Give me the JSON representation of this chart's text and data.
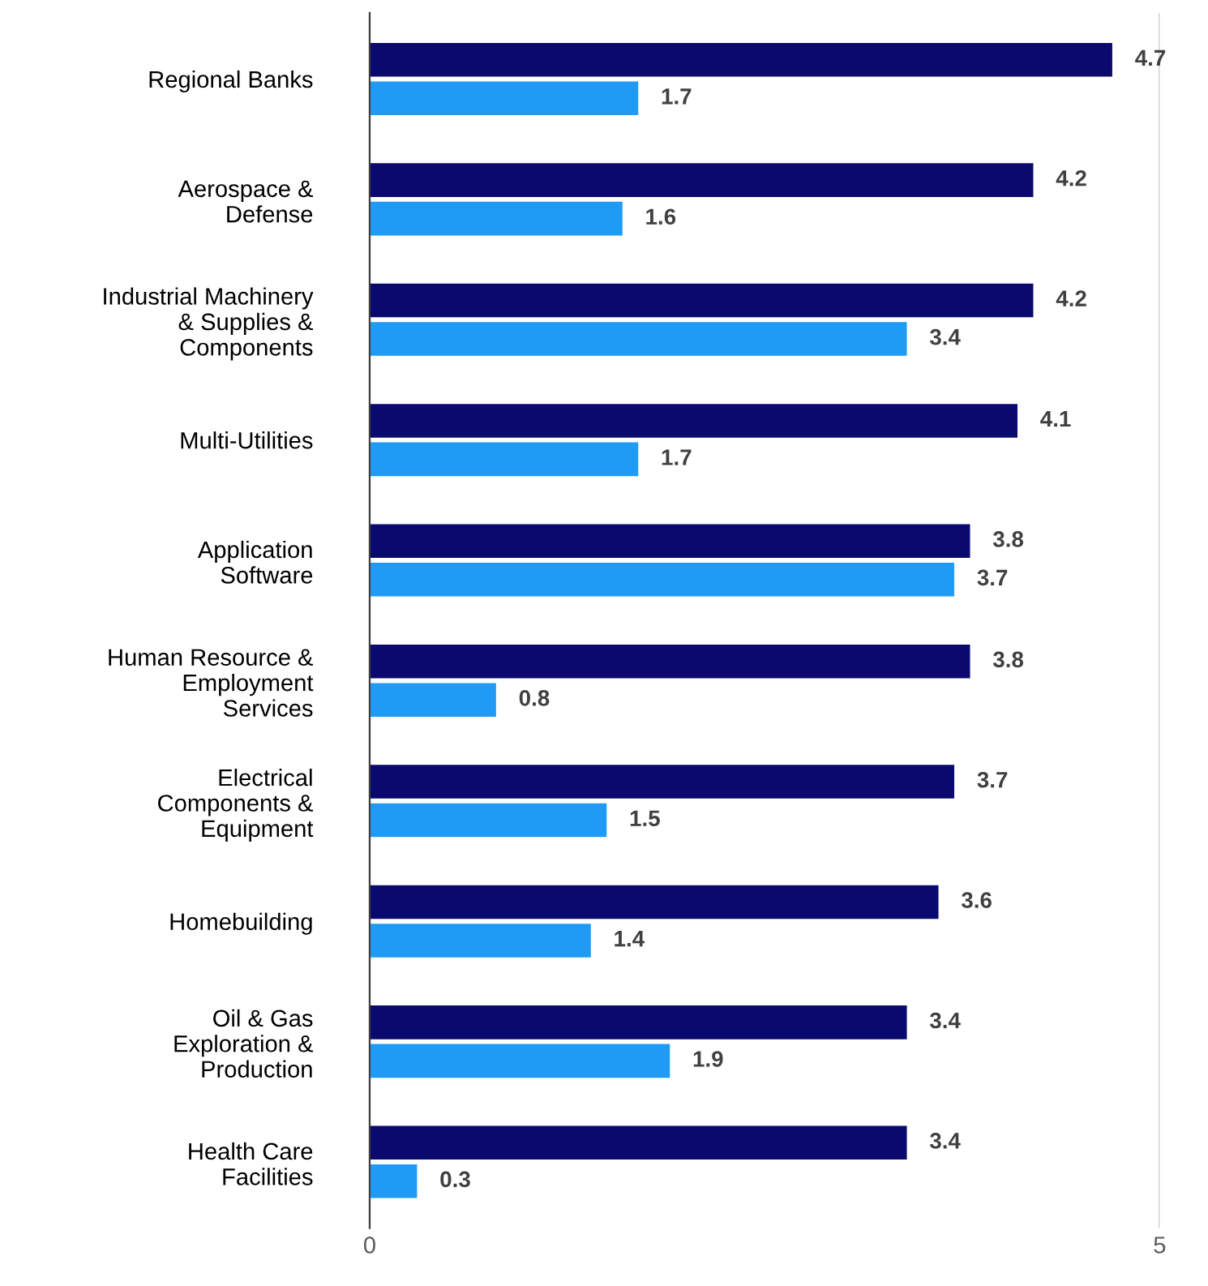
{
  "chart_data": {
    "type": "bar",
    "orientation": "horizontal",
    "categories": [
      "Regional Banks",
      "Aerospace &\nDefense",
      "Industrial Machinery\n& Supplies &\nComponents",
      "Multi-Utilities",
      "Application\nSoftware",
      "Human Resource &\nEmployment\nServices",
      "Electrical\nComponents &\nEquipment",
      "Homebuilding",
      "Oil & Gas\nExploration &\nProduction",
      "Health Care\nFacilities"
    ],
    "series": [
      {
        "color": "#0a0a6e",
        "values": [
          4.7,
          4.2,
          4.2,
          4.1,
          3.8,
          3.8,
          3.7,
          3.6,
          3.4,
          3.4
        ]
      },
      {
        "color": "#1f9bf5",
        "values": [
          1.7,
          1.6,
          3.4,
          1.7,
          3.7,
          0.8,
          1.5,
          1.4,
          1.9,
          0.3
        ]
      }
    ],
    "xlim": [
      0,
      5
    ],
    "xticks": [
      0,
      5
    ],
    "grid": "x",
    "data_labels": true
  }
}
